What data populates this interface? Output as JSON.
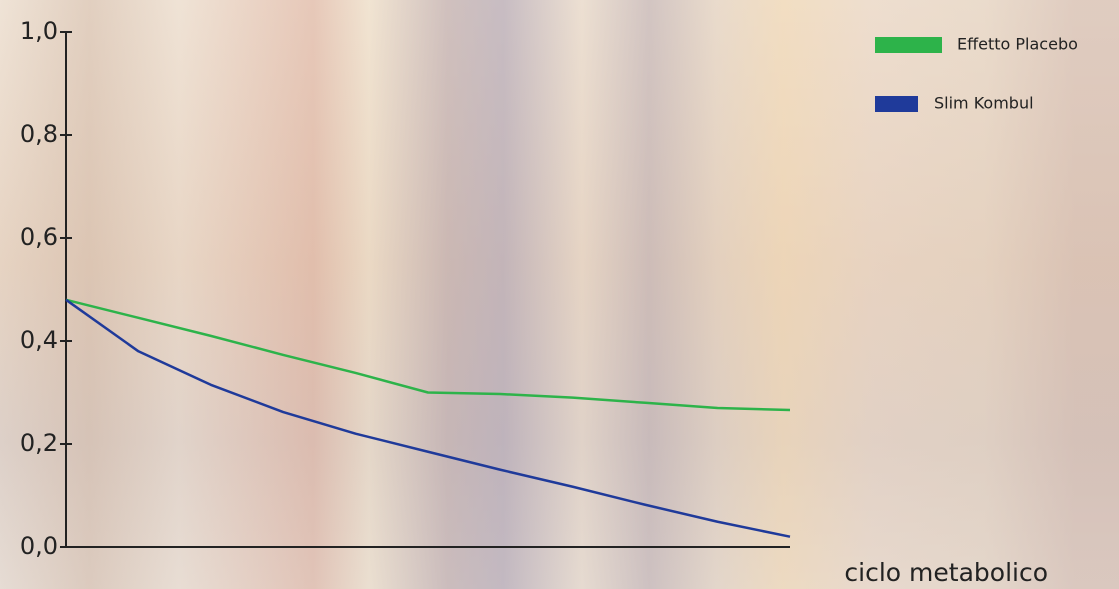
{
  "chart_data": {
    "type": "line",
    "x_label": "ciclo metabolico",
    "categories": [
      null,
      null,
      null,
      null,
      null,
      null,
      null,
      null,
      null,
      null,
      null
    ],
    "ylim": [
      0,
      1.0
    ],
    "yticks": [
      {
        "value": 0,
        "label": "0,0"
      },
      {
        "value": 0.2,
        "label": "0,2"
      },
      {
        "value": 0.4,
        "label": "0,4"
      },
      {
        "value": 0.6,
        "label": "0,6"
      },
      {
        "value": 0.8,
        "label": "0,8"
      },
      {
        "value": 1.0,
        "label": "1,0"
      }
    ],
    "series": [
      {
        "name": "Effetto Placebo",
        "color": "#2db34a",
        "values": [
          0.48,
          0.445,
          0.41,
          0.373,
          0.338,
          0.3,
          0.297,
          0.29,
          0.28,
          0.27,
          0.266
        ]
      },
      {
        "name": "Slim Kombul",
        "color": "#1f3a9a",
        "values": [
          0.48,
          0.38,
          0.315,
          0.262,
          0.22,
          0.185,
          0.15,
          0.117,
          0.082,
          0.049,
          0.02
        ]
      }
    ]
  }
}
